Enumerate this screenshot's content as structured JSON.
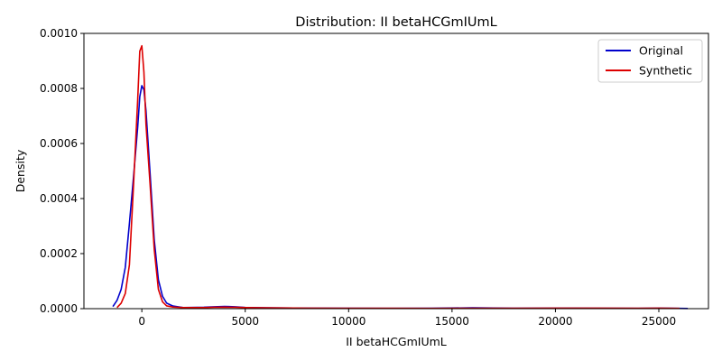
{
  "chart_data": {
    "type": "line",
    "title": "Distribution: II betaHCGmIUmL",
    "xlabel": "II betaHCGmIUmL",
    "ylabel": "Density",
    "xlim": [
      -2800,
      27400
    ],
    "ylim": [
      0,
      0.001
    ],
    "x_ticks": [
      0,
      5000,
      10000,
      15000,
      20000,
      25000
    ],
    "x_tick_labels": [
      "0",
      "5000",
      "10000",
      "15000",
      "20000",
      "25000"
    ],
    "y_ticks": [
      0,
      0.0002,
      0.0004,
      0.0006,
      0.0008,
      0.001
    ],
    "y_tick_labels": [
      "0.0000",
      "0.0002",
      "0.0004",
      "0.0006",
      "0.0008",
      "0.0010"
    ],
    "grid": false,
    "legend_position": "top-right",
    "series": [
      {
        "name": "Original",
        "color": "#0000cc",
        "x": [
          -1400,
          -1200,
          -1000,
          -800,
          -600,
          -400,
          -200,
          -100,
          0,
          100,
          200,
          400,
          600,
          800,
          1000,
          1200,
          1500,
          2000,
          3000,
          3500,
          4000,
          4500,
          5000,
          6000,
          8000,
          10000,
          12000,
          14000,
          16000,
          17000,
          18000,
          20000,
          21000,
          22000,
          24000,
          25000,
          26000,
          26400
        ],
        "y": [
          7.5e-06,
          3e-05,
          7e-05,
          0.00015,
          0.00031,
          0.00048,
          0.00066,
          0.00077,
          0.00081,
          0.000795,
          0.00072,
          0.00049,
          0.00025,
          0.000105,
          4.5e-05,
          2e-05,
          9.5e-06,
          4e-06,
          5e-06,
          7e-06,
          8e-06,
          7e-06,
          4.5e-06,
          3e-06,
          2e-06,
          1.5e-06,
          1e-06,
          1.5e-06,
          3e-06,
          2.5e-06,
          1.5e-06,
          2e-06,
          2e-06,
          1.5e-06,
          1e-06,
          2e-06,
          1e-06,
          5e-07
        ]
      },
      {
        "name": "Synthetic",
        "color": "#dd0000",
        "x": [
          -1200,
          -1000,
          -800,
          -600,
          -400,
          -200,
          -100,
          0,
          100,
          200,
          400,
          600,
          800,
          1000,
          1200,
          1500,
          2000,
          3000,
          3500,
          4000,
          4500,
          5000,
          6000,
          8000,
          10000,
          12000,
          14000,
          16000,
          18000,
          20000,
          22000,
          24000,
          25000,
          26000
        ],
        "y": [
          4e-06,
          2e-05,
          5.5e-05,
          0.00016,
          0.00045,
          0.00076,
          0.000935,
          0.000955,
          0.00086,
          0.00067,
          0.00045,
          0.000215,
          7e-05,
          2.5e-05,
          1e-05,
          6e-06,
          4e-06,
          4e-06,
          5e-06,
          5.5e-06,
          5e-06,
          4e-06,
          3e-06,
          2e-06,
          1.5e-06,
          1.5e-06,
          1e-06,
          1.5e-06,
          1.5e-06,
          2e-06,
          2e-06,
          1.5e-06,
          2e-06,
          1e-06
        ]
      }
    ]
  }
}
